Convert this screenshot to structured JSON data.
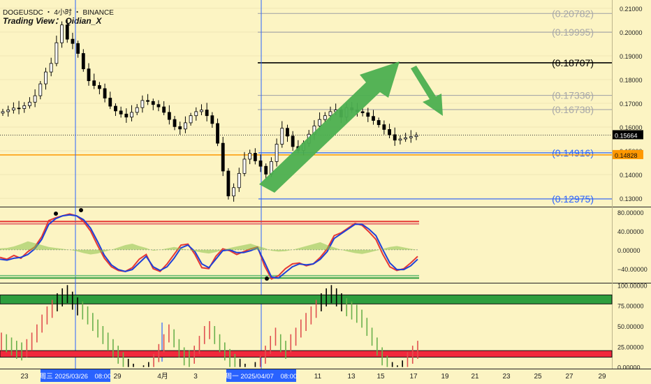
{
  "header": {
    "symbol_line": "DOGEUSDC ・ 4小时 ・ BINANCE",
    "author": "Trading View： Qidian_X"
  },
  "chart_data": [
    {
      "type": "candlestick",
      "title": "DOGEUSDC ・ 4小时 ・ BINANCE",
      "x_tick_labels": [
        "23",
        "29",
        "4月",
        "3",
        "11",
        "13",
        "15",
        "17",
        "19",
        "21",
        "23",
        "25",
        "27",
        "29"
      ],
      "y_tick_labels": [
        "0.21000",
        "0.20000",
        "0.19000",
        "0.18000",
        "0.17000",
        "0.16000",
        "0.15000",
        "0.14000",
        "0.13000"
      ],
      "ylim": [
        0.1265,
        0.2135
      ],
      "last_price": "0.15664",
      "last_price_color": "#000000",
      "orange_line": "0.14828",
      "orange_color": "#ff9800",
      "bull_color": "#000000",
      "bear_color": "#000000",
      "levels": [
        {
          "label": "(0.20782)",
          "value": 0.20782,
          "color": "#a8a8a8"
        },
        {
          "label": "(0.19995)",
          "value": 0.19995,
          "color": "#a8a8a8"
        },
        {
          "label": "(0.18707)",
          "value": 0.18707,
          "color": "#000000"
        },
        {
          "label": "(0.17336)",
          "value": 0.17336,
          "color": "#a8a8a8"
        },
        {
          "label": "(0.16738)",
          "value": 0.16738,
          "color": "#a8a8a8"
        },
        {
          "label": "(0.14916)",
          "value": 0.14916,
          "color": "#2962ff"
        },
        {
          "label": "(0.12975)",
          "value": 0.12975,
          "color": "#2962ff"
        }
      ],
      "price_path": [
        0.1665,
        0.1672,
        0.168,
        0.1678,
        0.169,
        0.1705,
        0.1732,
        0.1782,
        0.1832,
        0.1868,
        0.1955,
        0.203,
        0.197,
        0.1952,
        0.191,
        0.1845,
        0.1795,
        0.1775,
        0.1762,
        0.1722,
        0.1688,
        0.1668,
        0.1655,
        0.1642,
        0.1662,
        0.1682,
        0.1712,
        0.1708,
        0.1695,
        0.1685,
        0.1662,
        0.1632,
        0.1602,
        0.1592,
        0.1618,
        0.1648,
        0.1665,
        0.1672,
        0.1648,
        0.1615,
        0.1532,
        0.1415,
        0.131,
        0.1345,
        0.1405,
        0.1465,
        0.149,
        0.1458,
        0.1435,
        0.1402,
        0.1455,
        0.1528,
        0.1595,
        0.1562,
        0.1518,
        0.1502,
        0.1532,
        0.157,
        0.1605,
        0.1632,
        0.1648,
        0.1665,
        0.1672,
        0.1642,
        0.1682,
        0.1672,
        0.1665,
        0.166,
        0.1645,
        0.1628,
        0.161,
        0.159,
        0.1568,
        0.1545,
        0.155,
        0.1555,
        0.156,
        0.1566
      ]
    },
    {
      "type": "line",
      "title": "",
      "y_tick_labels": [
        "80.00000",
        "40.00000",
        "0.00000",
        "−40.00000"
      ],
      "ylim": [
        -70,
        90
      ],
      "series": [
        {
          "values": [
            -16,
            -20,
            -12,
            -18,
            -4,
            6,
            28,
            62,
            68,
            72,
            76,
            72,
            60,
            40,
            10,
            -18,
            -36,
            -44,
            -46,
            -38,
            -20,
            -10,
            -40,
            -46,
            -30,
            -10,
            10,
            12,
            -10,
            -38,
            -40,
            -14,
            2,
            -2,
            -10,
            -4,
            2,
            6,
            -34,
            -62,
            -55,
            -40,
            -30,
            -28,
            -34,
            -30,
            -16,
            2,
            30,
            36,
            46,
            56,
            52,
            38,
            22,
            -10,
            -36,
            -44,
            -40,
            -28,
            -14
          ],
          "color": "#e53935"
        },
        {
          "values": [
            -20,
            -22,
            -18,
            -16,
            -10,
            2,
            22,
            54,
            66,
            72,
            74,
            72,
            64,
            46,
            18,
            -12,
            -32,
            -42,
            -46,
            -42,
            -28,
            -14,
            -36,
            -44,
            -36,
            -18,
            4,
            10,
            -4,
            -30,
            -38,
            -20,
            -2,
            0,
            -6,
            -6,
            -2,
            4,
            -26,
            -58,
            -60,
            -48,
            -36,
            -30,
            -32,
            -30,
            -20,
            -4,
            24,
            34,
            44,
            54,
            54,
            44,
            30,
            0,
            -28,
            -42,
            -42,
            -34,
            -20
          ],
          "color": "#1e40d8"
        },
        {
          "values": [
            3,
            4,
            7,
            12,
            18,
            14,
            10,
            6,
            4,
            2,
            0,
            -3,
            -7,
            -10,
            -8,
            -4,
            0,
            5,
            10,
            13,
            8,
            4,
            -2,
            0,
            3,
            6,
            3,
            0,
            -3,
            -6,
            -8,
            -5,
            0,
            4,
            7,
            10,
            13,
            8,
            4,
            -2,
            -4,
            -3,
            0,
            4,
            8,
            12,
            16,
            10,
            5,
            0,
            -4,
            -7,
            -9,
            -6,
            -2,
            2,
            6,
            8,
            5,
            2,
            0
          ],
          "color": "#8bc34a"
        }
      ],
      "zone_lines": [
        60,
        55,
        -55,
        -60
      ]
    },
    {
      "type": "bar",
      "title": "",
      "y_tick_labels": [
        "100.00000",
        "75.00000",
        "50.00000",
        "25.00000",
        "0.00000"
      ],
      "ylim": [
        -2,
        102
      ],
      "values": [
        42,
        40,
        36,
        32,
        30,
        34,
        42,
        52,
        64,
        74,
        82,
        90,
        96,
        100,
        92,
        85,
        80,
        74,
        66,
        58,
        50,
        42,
        34,
        26,
        18,
        10,
        4,
        0,
        2,
        6,
        16,
        28,
        40,
        52,
        46,
        34,
        24,
        20,
        26,
        38,
        50,
        56,
        50,
        40,
        30,
        22,
        16,
        10,
        4,
        0,
        6,
        14,
        26,
        38,
        48,
        40,
        32,
        40,
        48,
        58,
        66,
        74,
        82,
        90,
        96,
        100,
        96,
        90,
        84,
        80,
        76,
        70,
        60,
        48,
        36,
        24,
        14,
        6,
        2,
        8,
        18,
        26,
        32
      ],
      "bands": [
        {
          "from": 77,
          "to": 88,
          "color": "#2e9e3e"
        },
        {
          "from": 12,
          "to": 20,
          "color": "#f0283c"
        }
      ]
    }
  ],
  "markers": [
    {
      "label": "周三 2025/03/26　08:00"
    },
    {
      "label": "周一 2025/04/07　08:00"
    }
  ],
  "colors": {
    "accent": "#2962ff",
    "arrow": "#4caf50",
    "background": "#fcf4c3"
  }
}
